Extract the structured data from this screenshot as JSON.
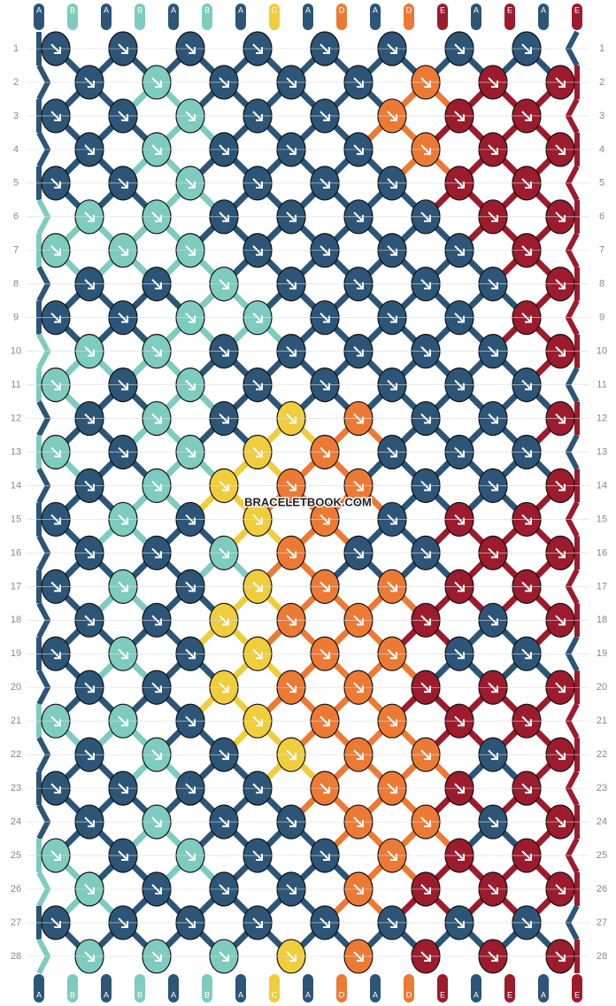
{
  "top_labels": [
    "A",
    "B",
    "A",
    "B",
    "A",
    "B",
    "A",
    "C",
    "A",
    "D",
    "A",
    "D",
    "E",
    "A",
    "E",
    "A",
    "E"
  ],
  "bottom_labels": [
    "A",
    "B",
    "A",
    "B",
    "A",
    "B",
    "A",
    "C",
    "A",
    "D",
    "A",
    "D",
    "E",
    "A",
    "E",
    "A",
    "E"
  ],
  "rows": [
    1,
    2,
    3,
    4,
    5,
    6,
    7,
    8,
    9,
    10,
    11,
    12,
    13,
    14,
    15,
    16,
    17,
    18,
    19,
    20,
    21,
    22,
    23,
    24,
    25,
    26,
    27,
    28
  ],
  "watermark": "BRACELETBOOK.COM"
}
